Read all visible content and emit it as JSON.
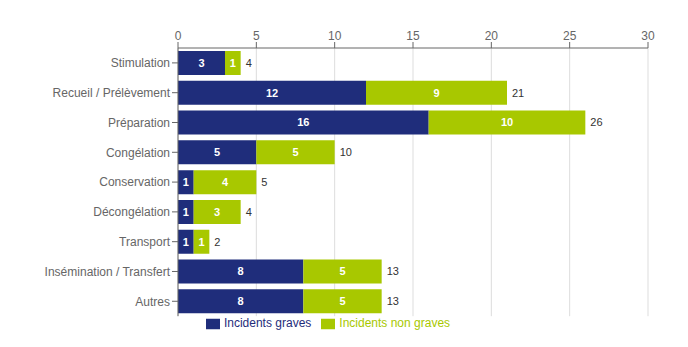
{
  "chart_data": {
    "type": "bar",
    "orientation": "horizontal",
    "stacked": true,
    "categories": [
      "Autres",
      "Insémination / Transfert",
      "Transport",
      "Décongélation",
      "Conservation",
      "Congélation",
      "Préparation",
      "Recueil / Prélèvement",
      "Stimulation"
    ],
    "series": [
      {
        "name": "Incidents graves",
        "color": "#1F2D7B",
        "values": [
          8,
          8,
          1,
          1,
          1,
          5,
          16,
          12,
          3
        ]
      },
      {
        "name": "Incidents non graves",
        "color": "#A8C800",
        "values": [
          5,
          5,
          1,
          3,
          4,
          5,
          10,
          9,
          1
        ]
      }
    ],
    "totals": [
      13,
      13,
      2,
      4,
      5,
      10,
      26,
      21,
      4
    ],
    "xlim": [
      0,
      30
    ],
    "xticks": [
      0,
      5,
      10,
      15,
      20,
      25,
      30
    ],
    "grid": true,
    "legend": "bottom",
    "data_labels": true
  }
}
